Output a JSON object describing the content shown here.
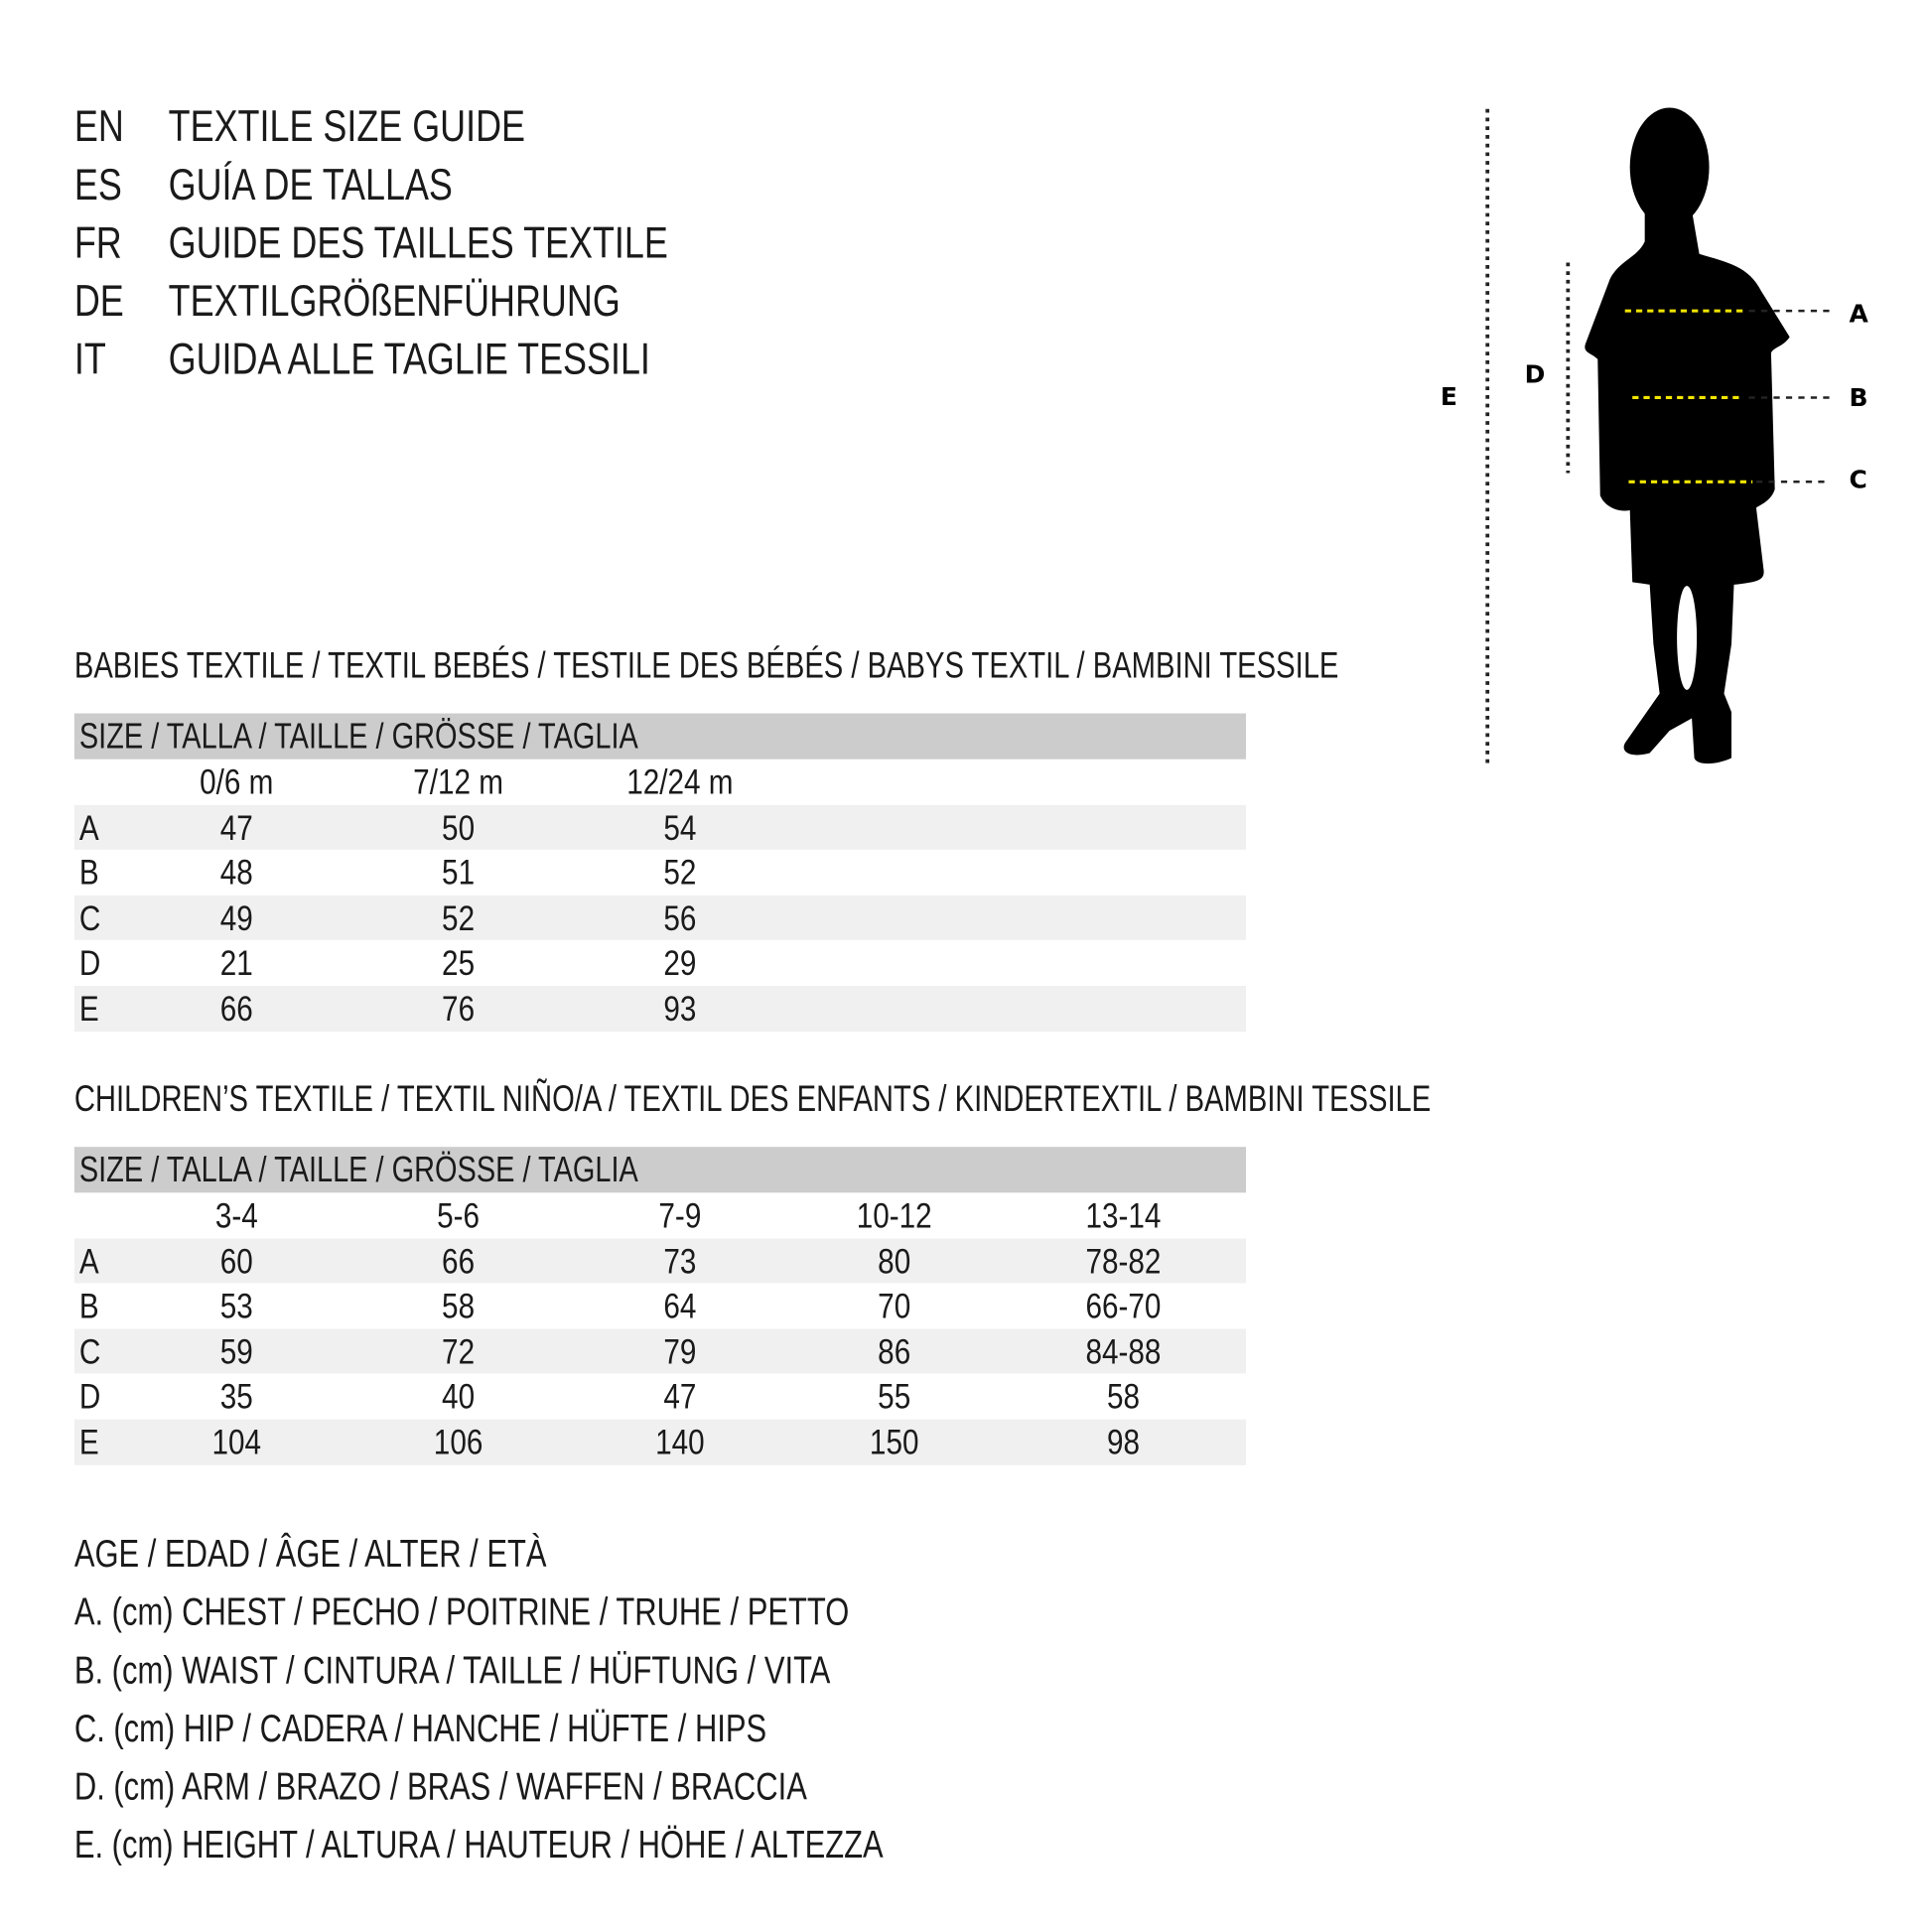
{
  "titles": [
    {
      "code": "EN",
      "text": "TEXTILE SIZE GUIDE"
    },
    {
      "code": "ES",
      "text": "GUÍA DE TALLAS"
    },
    {
      "code": "FR",
      "text": "GUIDE DES TAILLES TEXTILE"
    },
    {
      "code": "DE",
      "text": "TEXTILGRÖßENFÜHRUNG"
    },
    {
      "code": "IT",
      "text": "GUIDA ALLE TAGLIE TESSILI"
    }
  ],
  "figure": {
    "labels": {
      "A": "A",
      "B": "B",
      "C": "C",
      "D": "D",
      "E": "E"
    },
    "measure_line_color": "#f2e600"
  },
  "babies": {
    "heading": "BABIES TEXTILE / TEXTIL BEBÉS / TESTILE DES BÉBÉS / BABYS TEXTIL / BAMBINI TESSILE",
    "size_header": "SIZE / TALLA / TAILLE / GRÖSSE / TAGLIA",
    "columns": [
      "0/6 m",
      "7/12 m",
      "12/24 m"
    ],
    "rows": [
      {
        "label": "A",
        "values": [
          "47",
          "50",
          "54"
        ]
      },
      {
        "label": "B",
        "values": [
          "48",
          "51",
          "52"
        ]
      },
      {
        "label": "C",
        "values": [
          "49",
          "52",
          "56"
        ]
      },
      {
        "label": "D",
        "values": [
          "21",
          "25",
          "29"
        ]
      },
      {
        "label": "E",
        "values": [
          "66",
          "76",
          "93"
        ]
      }
    ]
  },
  "children": {
    "heading": "CHILDREN’S TEXTILE / TEXTIL NIÑO/A / TEXTIL DES ENFANTS / KINDERTEXTIL / BAMBINI TESSILE",
    "size_header": "SIZE / TALLA / TAILLE / GRÖSSE / TAGLIA",
    "columns": [
      "3-4",
      "5-6",
      "7-9",
      "10-12",
      "13-14"
    ],
    "rows": [
      {
        "label": "A",
        "values": [
          "60",
          "66",
          "73",
          "80",
          "78-82"
        ]
      },
      {
        "label": "B",
        "values": [
          "53",
          "58",
          "64",
          "70",
          "66-70"
        ]
      },
      {
        "label": "C",
        "values": [
          "59",
          "72",
          "79",
          "86",
          "84-88"
        ]
      },
      {
        "label": "D",
        "values": [
          "35",
          "40",
          "47",
          "55",
          "58"
        ]
      },
      {
        "label": "E",
        "values": [
          "104",
          "106",
          "140",
          "150",
          "98"
        ]
      }
    ]
  },
  "legend": [
    "AGE / EDAD / ÂGE / ALTER / ETÀ",
    "A. (cm) CHEST / PECHO / POITRINE / TRUHE / PETTO",
    "B. (cm) WAIST / CINTURA / TAILLE / HÜFTUNG / VITA",
    "C. (cm) HIP / CADERA / HANCHE / HÜFTE / HIPS",
    "D. (cm) ARM / BRAZO / BRAS / WAFFEN / BRACCIA",
    "E. (cm) HEIGHT / ALTURA / HAUTEUR / HÖHE / ALTEZZA"
  ]
}
